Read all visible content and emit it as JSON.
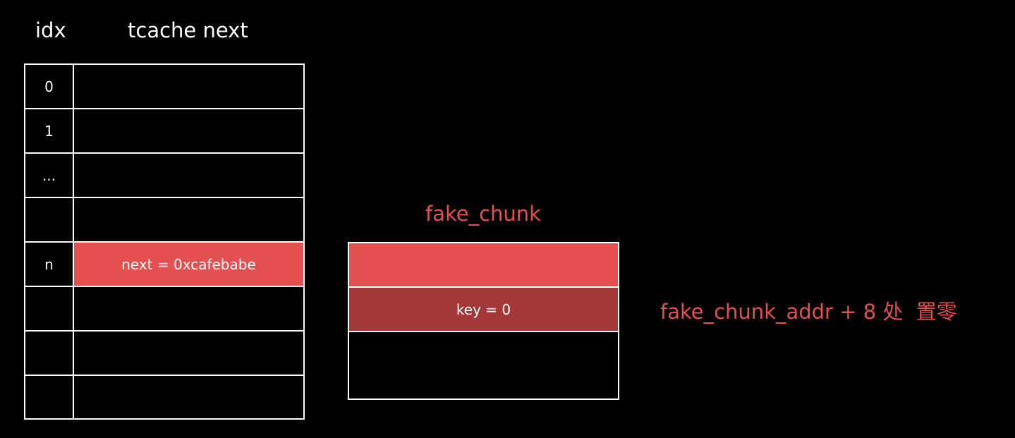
{
  "headers": {
    "idx": "idx",
    "tcache_next": "tcache next"
  },
  "tcache": {
    "rows": [
      {
        "idx": "0",
        "value": ""
      },
      {
        "idx": "1",
        "value": ""
      },
      {
        "idx": "...",
        "value": ""
      },
      {
        "idx": "",
        "value": ""
      },
      {
        "idx": "n",
        "value": "next = 0xcafebabe"
      },
      {
        "idx": "",
        "value": ""
      },
      {
        "idx": "",
        "value": ""
      },
      {
        "idx": "",
        "value": ""
      }
    ]
  },
  "fake_chunk": {
    "title": "fake_chunk",
    "top_value": "",
    "key_value": "key = 0"
  },
  "note": "fake_chunk_addr + 8 处  置零",
  "colors": {
    "background": "#000000",
    "highlight": "#e45050",
    "key_fill": "#a33838",
    "line": "#ffffff"
  }
}
